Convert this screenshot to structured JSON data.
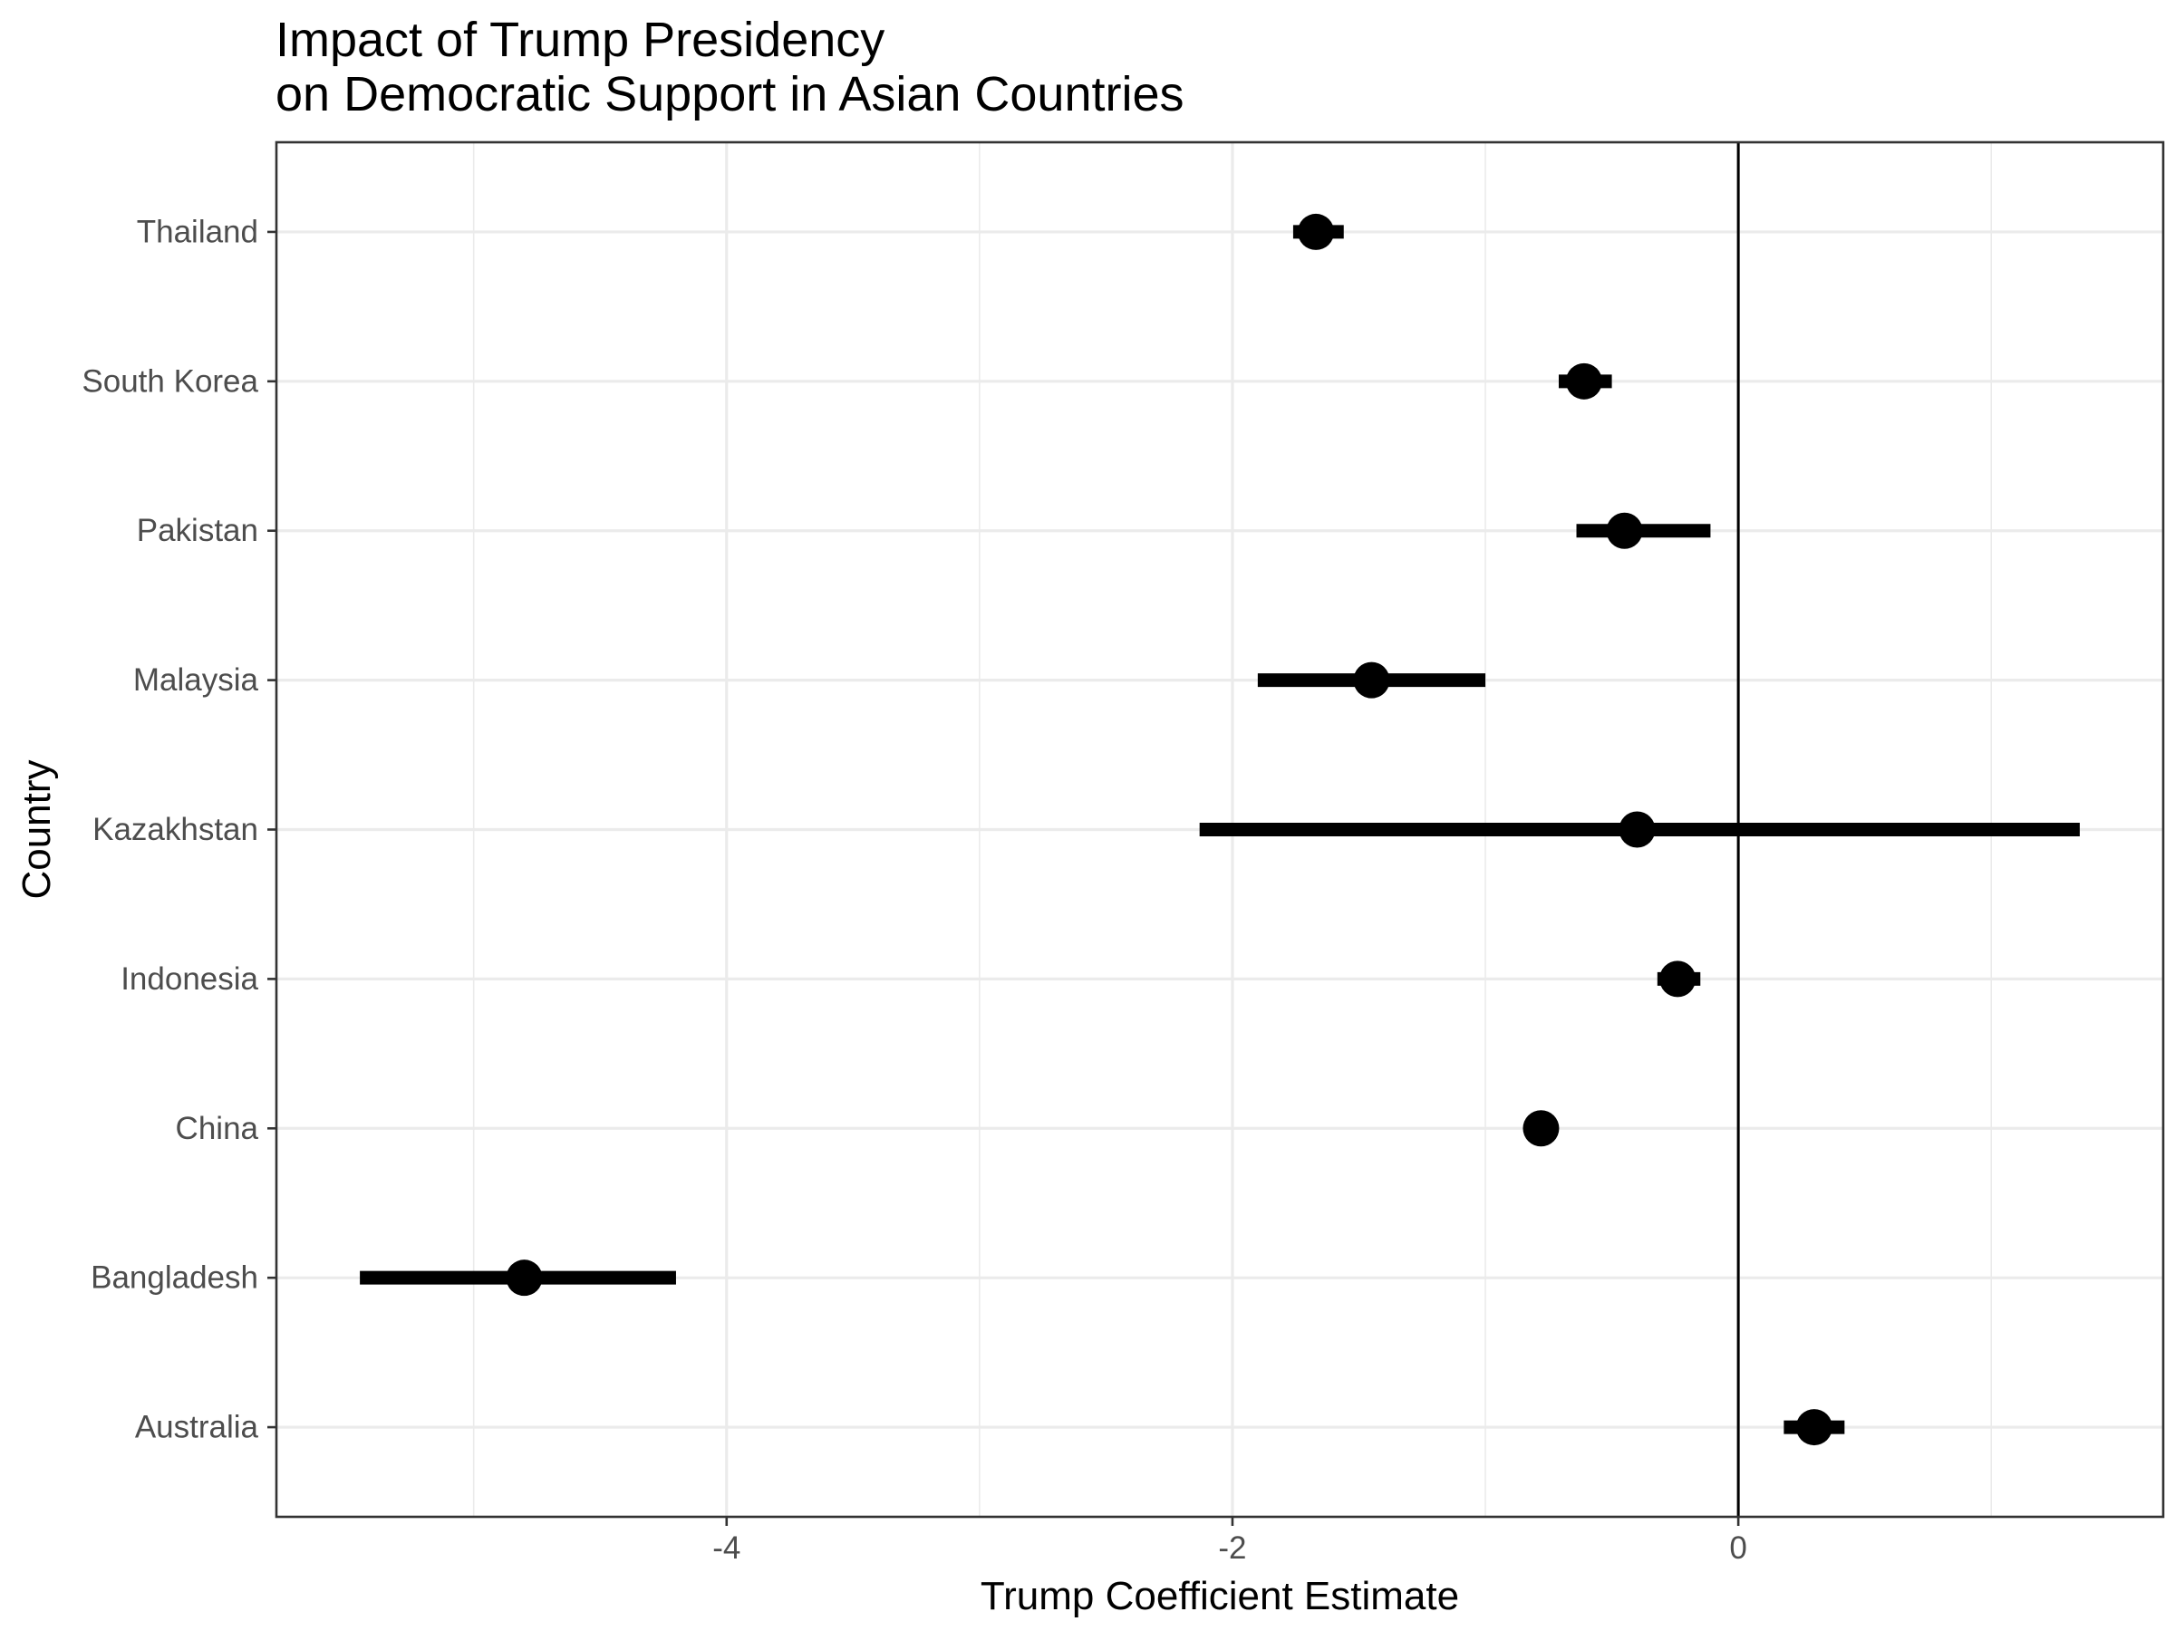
{
  "chart_data": {
    "type": "scatter",
    "title": [
      "Impact of Trump Presidency",
      "on Democratic Support in Asian Countries"
    ],
    "xlabel": "Trump Coefficient Estimate",
    "ylabel": "Country",
    "xlim": [
      -5.78,
      1.68
    ],
    "xticks": [
      -4,
      -2,
      0
    ],
    "xtick_labels": [
      "-4",
      "-2",
      "0"
    ],
    "x_minor_gridlines": [
      -5,
      -3,
      -1,
      1
    ],
    "reference_line_x": 0,
    "grid": true,
    "legend": "none",
    "point_color": "#000000",
    "categories": [
      "Australia",
      "Bangladesh",
      "China",
      "Indonesia",
      "Kazakhstan",
      "Malaysia",
      "Pakistan",
      "South Korea",
      "Thailand"
    ],
    "estimates": [
      0.3,
      -4.8,
      -0.78,
      -0.24,
      -0.4,
      -1.45,
      -0.45,
      -0.61,
      -1.67
    ],
    "ci_low": [
      0.18,
      -5.45,
      -0.78,
      -0.32,
      -2.13,
      -1.9,
      -0.64,
      -0.71,
      -1.76
    ],
    "ci_high": [
      0.42,
      -4.2,
      -0.78,
      -0.15,
      1.35,
      -1.0,
      -0.11,
      -0.5,
      -1.56
    ]
  }
}
